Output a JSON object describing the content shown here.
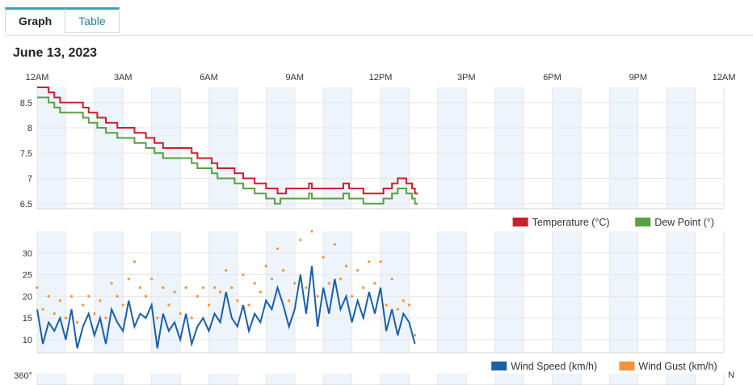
{
  "tabs": [
    {
      "label": "Graph",
      "active": true
    },
    {
      "label": "Table",
      "active": false
    }
  ],
  "date": "June 13, 2023",
  "x_ticks": [
    "12AM",
    "3AM",
    "6AM",
    "9AM",
    "12PM",
    "3PM",
    "6PM",
    "9PM",
    "12AM"
  ],
  "third_chart_label": "360°",
  "third_chart_right_label": "N",
  "colors": {
    "temperature": "#c8202e",
    "dew_point": "#5a9e45",
    "wind_speed": "#1a5fa8",
    "wind_gust": "#f5923e",
    "band": "#eef4fb",
    "grid": "#e6e6e6"
  },
  "chart_data": [
    {
      "type": "line",
      "x_unit": "hours",
      "xlim": [
        0,
        24
      ],
      "ylim": [
        6.4,
        8.8
      ],
      "y_ticks": [
        6.5,
        7,
        7.5,
        8,
        8.5
      ],
      "legend": "bottom-right",
      "series": [
        {
          "name": "Temperature (°C)",
          "x": [
            0,
            0.4,
            0.6,
            0.8,
            1.1,
            1.6,
            1.8,
            2.1,
            2.4,
            2.8,
            3.4,
            3.8,
            4.1,
            4.4,
            4.6,
            5.2,
            5.4,
            5.6,
            6.1,
            6.3,
            6.6,
            6.9,
            7.2,
            7.6,
            8.0,
            8.4,
            8.7,
            8.9,
            9.3,
            9.5,
            9.6,
            9.8,
            10.0,
            10.5,
            10.7,
            10.9,
            11.2,
            11.4,
            11.8,
            12.1,
            12.4,
            12.6,
            12.9,
            13.1,
            13.2,
            13.3
          ],
          "y": [
            8.8,
            8.7,
            8.6,
            8.5,
            8.5,
            8.4,
            8.3,
            8.2,
            8.1,
            8.0,
            7.9,
            7.8,
            7.7,
            7.6,
            7.6,
            7.6,
            7.5,
            7.4,
            7.3,
            7.2,
            7.2,
            7.1,
            7.0,
            6.9,
            6.8,
            6.7,
            6.8,
            6.8,
            6.8,
            6.9,
            6.8,
            6.8,
            6.8,
            6.8,
            6.9,
            6.8,
            6.8,
            6.7,
            6.7,
            6.8,
            6.9,
            7.0,
            6.9,
            6.8,
            6.7,
            6.7
          ]
        },
        {
          "name": "Dew Point (°)",
          "x": [
            0,
            0.4,
            0.6,
            0.8,
            1.1,
            1.6,
            1.8,
            2.1,
            2.4,
            2.8,
            3.4,
            3.8,
            4.1,
            4.4,
            4.6,
            5.2,
            5.4,
            5.6,
            6.1,
            6.3,
            6.6,
            6.9,
            7.2,
            7.6,
            8.0,
            8.3,
            8.5,
            8.8,
            9.2,
            9.5,
            9.6,
            9.8,
            10.0,
            10.5,
            10.7,
            10.9,
            11.2,
            11.4,
            11.8,
            12.1,
            12.4,
            12.6,
            12.9,
            13.1,
            13.2,
            13.3
          ],
          "y": [
            8.6,
            8.5,
            8.4,
            8.3,
            8.3,
            8.2,
            8.1,
            8.0,
            7.9,
            7.8,
            7.7,
            7.6,
            7.5,
            7.4,
            7.4,
            7.4,
            7.3,
            7.2,
            7.1,
            7.0,
            7.0,
            6.9,
            6.8,
            6.7,
            6.6,
            6.5,
            6.6,
            6.6,
            6.6,
            6.7,
            6.6,
            6.6,
            6.6,
            6.6,
            6.7,
            6.6,
            6.6,
            6.5,
            6.5,
            6.6,
            6.7,
            6.8,
            6.7,
            6.6,
            6.5,
            6.5
          ]
        }
      ]
    },
    {
      "type": "line",
      "x_unit": "hours",
      "xlim": [
        0,
        24
      ],
      "ylim": [
        7,
        35
      ],
      "y_ticks": [
        10,
        15,
        20,
        25,
        30
      ],
      "legend": "bottom-right",
      "series": [
        {
          "name": "Wind Speed (km/h)",
          "x": [
            0,
            0.2,
            0.4,
            0.6,
            0.8,
            1.0,
            1.2,
            1.4,
            1.6,
            1.8,
            2.0,
            2.2,
            2.4,
            2.6,
            2.8,
            3.0,
            3.2,
            3.4,
            3.6,
            3.8,
            4.0,
            4.2,
            4.4,
            4.6,
            4.8,
            5.0,
            5.2,
            5.4,
            5.6,
            5.8,
            6.0,
            6.2,
            6.4,
            6.6,
            6.8,
            7.0,
            7.2,
            7.4,
            7.6,
            7.8,
            8.0,
            8.2,
            8.4,
            8.6,
            8.8,
            9.0,
            9.2,
            9.4,
            9.6,
            9.8,
            10.0,
            10.2,
            10.4,
            10.6,
            10.8,
            11.0,
            11.2,
            11.4,
            11.6,
            11.8,
            12.0,
            12.2,
            12.4,
            12.6,
            12.8,
            13.0,
            13.2
          ],
          "y": [
            17,
            9,
            14,
            12,
            15,
            10,
            17,
            8,
            13,
            16,
            11,
            15,
            9,
            17,
            14,
            12,
            19,
            13,
            16,
            15,
            18,
            8,
            16,
            12,
            14,
            10,
            16,
            9,
            13,
            15,
            12,
            16,
            14,
            21,
            15,
            13,
            18,
            12,
            16,
            14,
            19,
            17,
            22,
            18,
            13,
            17,
            25,
            16,
            27,
            13,
            22,
            16,
            24,
            17,
            20,
            14,
            19,
            15,
            21,
            16,
            22,
            12,
            17,
            11,
            16,
            14,
            9
          ]
        },
        {
          "name": "Wind Gust (km/h)",
          "x": [
            0,
            0.2,
            0.4,
            0.6,
            0.8,
            1.0,
            1.2,
            1.4,
            1.6,
            1.8,
            2.0,
            2.2,
            2.4,
            2.6,
            2.8,
            3.0,
            3.2,
            3.4,
            3.6,
            3.8,
            4.0,
            4.2,
            4.4,
            4.6,
            4.8,
            5.0,
            5.2,
            5.4,
            5.6,
            5.8,
            6.0,
            6.2,
            6.4,
            6.6,
            6.8,
            7.0,
            7.2,
            7.4,
            7.6,
            7.8,
            8.0,
            8.2,
            8.4,
            8.6,
            8.8,
            9.0,
            9.2,
            9.4,
            9.6,
            9.8,
            10.0,
            10.2,
            10.4,
            10.6,
            10.8,
            11.0,
            11.2,
            11.4,
            11.6,
            11.8,
            12.0,
            12.2,
            12.4,
            12.6,
            12.8,
            13.0,
            13.2
          ],
          "y": [
            22,
            17,
            20,
            16,
            19,
            15,
            20,
            14,
            18,
            20,
            16,
            19,
            15,
            23,
            20,
            18,
            24,
            28,
            22,
            20,
            24,
            15,
            22,
            18,
            21,
            16,
            22,
            15,
            20,
            22,
            18,
            22,
            21,
            26,
            22,
            19,
            25,
            18,
            23,
            21,
            27,
            24,
            31,
            26,
            19,
            23,
            33,
            22,
            35,
            20,
            29,
            23,
            32,
            24,
            27,
            20,
            26,
            22,
            28,
            23,
            28,
            18,
            24,
            17,
            19,
            18,
            11
          ]
        }
      ]
    }
  ]
}
